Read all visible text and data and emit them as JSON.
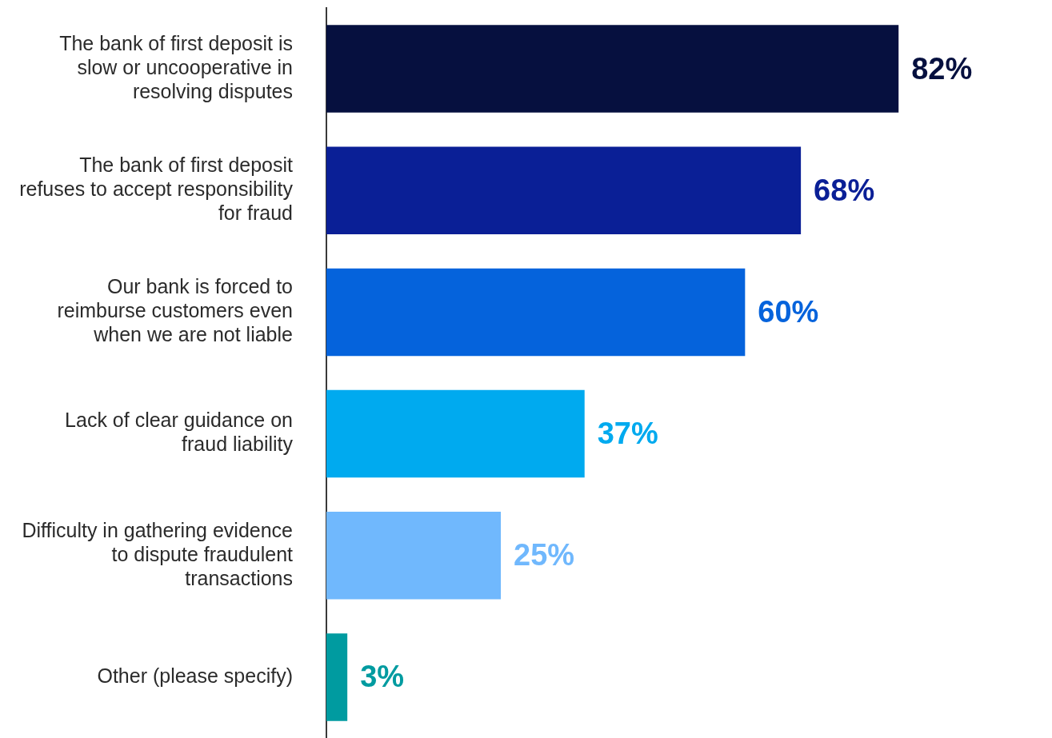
{
  "chart_data": {
    "type": "bar",
    "orientation": "horizontal",
    "categories": [
      "The bank of first deposit is slow or uncooperative in resolving disputes",
      "The bank of first deposit refuses to accept responsibility for fraud",
      "Our bank is forced to reimburse customers even when we are not liable",
      "Lack of clear guidance on fraud liability",
      "Difficulty in gathering evidence to dispute fraudulent transactions",
      "Other (please specify)"
    ],
    "values": [
      82,
      68,
      60,
      37,
      25,
      3
    ],
    "colors": [
      "#06103f",
      "#0a1f96",
      "#0563dc",
      "#00aaef",
      "#70b8fd",
      "#009ba0"
    ],
    "value_labels": [
      "82%",
      "68%",
      "60%",
      "37%",
      "25%",
      "3%"
    ],
    "legend": false
  }
}
